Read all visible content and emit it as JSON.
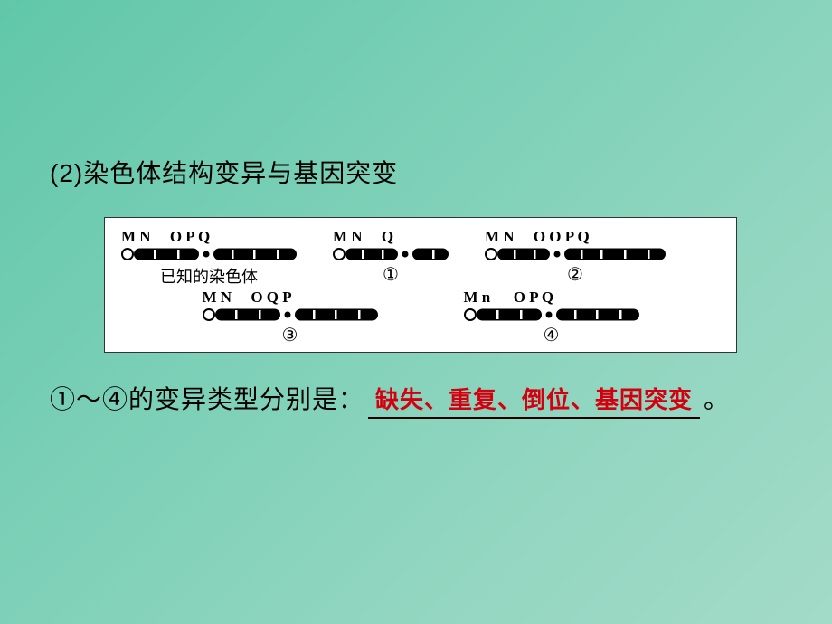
{
  "heading": "(2)染色体结构变异与基因突变",
  "diagram": {
    "background": "#ffffff",
    "chromo_fill": "#000000",
    "band_color": "#ffffff",
    "centromere_stroke": "#000000",
    "items": [
      {
        "id": "known",
        "labels": "M N     O P Q",
        "caption": "已知的染色体",
        "arm1_len": 72,
        "arm2_len": 92,
        "bands1": [
          22,
          48
        ],
        "bands2": [
          20,
          44,
          70
        ]
      },
      {
        "id": "c1",
        "labels": "M N     Q",
        "caption": "①",
        "arm1_len": 58,
        "arm2_len": 40,
        "bands1": [
          18,
          40
        ],
        "bands2": [
          22
        ]
      },
      {
        "id": "c2",
        "labels": "M N     O O P Q",
        "caption": "②",
        "arm1_len": 58,
        "arm2_len": 112,
        "bands1": [
          18,
          40
        ],
        "bands2": [
          18,
          40,
          66,
          92
        ]
      },
      {
        "id": "c3",
        "labels": "M N     O Q P",
        "caption": "③",
        "arm1_len": 72,
        "arm2_len": 92,
        "bands1": [
          22,
          48
        ],
        "bands2": [
          20,
          44,
          70
        ]
      },
      {
        "id": "c4",
        "labels": "M n      O P Q",
        "caption": "④",
        "arm1_len": 72,
        "arm2_len": 92,
        "bands1": [
          22,
          48
        ],
        "bands2": [
          20,
          44,
          70
        ]
      }
    ]
  },
  "answer_prefix": "①～④的变异类型分别是：",
  "answer_text": "缺失、重复、倒位、基因突变",
  "answer_suffix": "。",
  "colors": {
    "answer": "#d4000f",
    "text": "#000000"
  },
  "fontsize": {
    "heading": 28,
    "answer": 28,
    "answer_red": 26,
    "gene_label": 17
  }
}
